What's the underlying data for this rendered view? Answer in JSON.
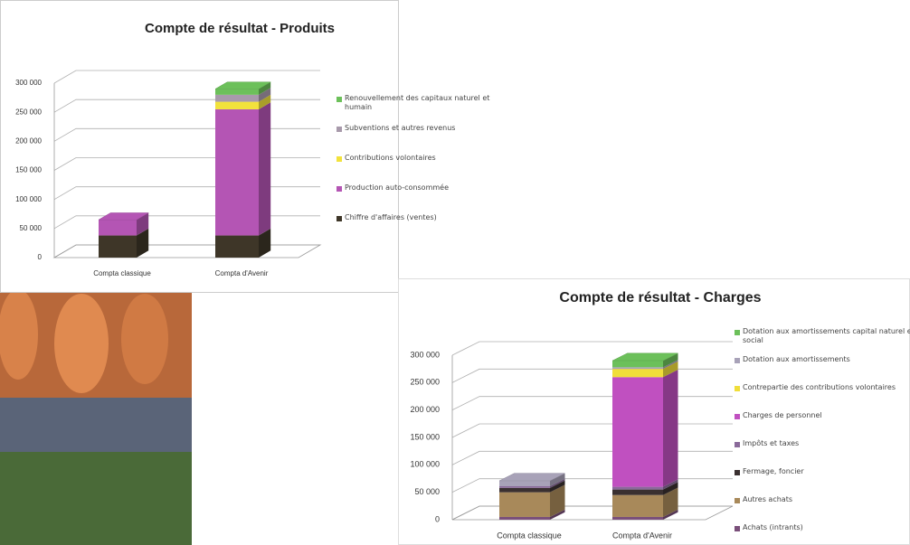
{
  "chart_data": [
    {
      "type": "bar3d-stacked",
      "title": "Compte de résultat - Produits",
      "categories": [
        "Compta classique",
        "Compta d'Avenir"
      ],
      "ylim": [
        0,
        300000
      ],
      "yticks": [
        0,
        {
          "value": 50000,
          "label": "50 000"
        },
        {
          "value": 100000,
          "label": "100 000"
        },
        {
          "value": 150000,
          "label": "150 000"
        },
        {
          "value": 200000,
          "label": "200 000"
        },
        {
          "value": 250000,
          "label": "250 000"
        },
        {
          "value": 300000,
          "label": "300 000"
        }
      ],
      "grid": true,
      "legend": "right",
      "series": [
        {
          "name": "Chiffre d'affaires (ventes)",
          "color": "#3e3628",
          "values": [
            38000,
            38000
          ]
        },
        {
          "name": "Production auto-consommée",
          "color": "#b455b4",
          "values": [
            27000,
            217000
          ]
        },
        {
          "name": "Contributions volontaires",
          "color": "#f2e23c",
          "values": [
            0,
            13000
          ]
        },
        {
          "name": "Subventions et autres revenus",
          "color": "#a89aab",
          "values": [
            0,
            12000
          ]
        },
        {
          "name": "Renouvellement des capitaux naturel et humain",
          "color": "#6cc05a",
          "values": [
            0,
            10000
          ]
        }
      ]
    },
    {
      "type": "bar3d-stacked",
      "title": "Compte de résultat - Charges",
      "categories": [
        "Compta classique",
        "Compta d'Avenir"
      ],
      "ylim": [
        0,
        300000
      ],
      "yticks": [
        0,
        {
          "value": 50000,
          "label": "50 000"
        },
        {
          "value": 100000,
          "label": "100 000"
        },
        {
          "value": 150000,
          "label": "150 000"
        },
        {
          "value": 200000,
          "label": "200 000"
        },
        {
          "value": 250000,
          "label": "250 000"
        },
        {
          "value": 300000,
          "label": "300 000"
        }
      ],
      "grid": true,
      "legend": "right",
      "series": [
        {
          "name": "Achats (intrants)",
          "color": "#7a4f7a",
          "values": [
            5000,
            5000
          ]
        },
        {
          "name": "Autres achats",
          "color": "#a8895a",
          "values": [
            45000,
            40000
          ]
        },
        {
          "name": "Fermage, foncier",
          "color": "#3a3030",
          "values": [
            8000,
            10000
          ]
        },
        {
          "name": "Impôts et taxes",
          "color": "#8a6a9a",
          "values": [
            3000,
            5000
          ]
        },
        {
          "name": "Charges de personnel",
          "color": "#c050c0",
          "values": [
            0,
            200000
          ]
        },
        {
          "name": "Contrepartie des contributions volontaires",
          "color": "#f0de3a",
          "values": [
            0,
            15000
          ]
        },
        {
          "name": "Dotation aux amortissements",
          "color": "#a8a2b8",
          "values": [
            10000,
            3000
          ]
        },
        {
          "name": "Dotation aux amortissements capital naturel et social",
          "color": "#6cc05a",
          "values": [
            0,
            12000
          ]
        }
      ]
    }
  ]
}
